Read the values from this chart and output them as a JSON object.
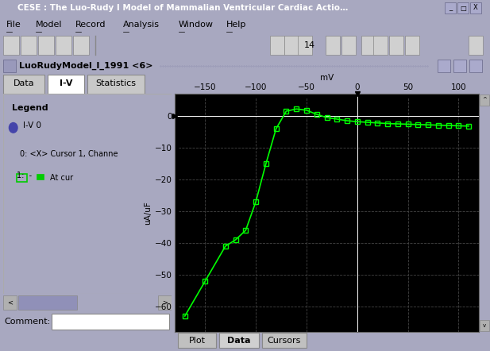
{
  "title": "CESE : The Luo-Rudy I Model of Mammalian Ventricular Cardiac Actio…",
  "menu_items": [
    "File",
    "Model",
    "Record",
    "Analysis",
    "Window",
    "Help"
  ],
  "window_title": "LuoRudyModel_I_1991 <6>",
  "tabs": [
    "Data",
    "I-V",
    "Statistics"
  ],
  "active_tab": "I-V",
  "bottom_tabs": [
    "Plot",
    "Data",
    "Cursors"
  ],
  "active_bottom_tab": "Data",
  "legend_title": "Legend",
  "legend_line1": "I-V 0",
  "legend_line2": "0: <X> Cursor 1, Channe",
  "legend_line3": "1:  -□-  ■  At cur",
  "ylabel": "uA/uF",
  "xlabel": "mV",
  "xlim": [
    -180,
    120
  ],
  "ylim": [
    -68,
    7
  ],
  "xticks": [
    -150,
    -100,
    -50,
    0,
    50,
    100
  ],
  "yticks": [
    0,
    -10,
    -20,
    -30,
    -40,
    -50,
    -60
  ],
  "plot_bg": "#000000",
  "title_bg": "#6e6e9e",
  "menu_bg": "#c8c8c8",
  "toolbar_bg": "#c8c8c8",
  "subwin_bg": "#8888b8",
  "tab_bg": "#c8c8c8",
  "active_tab_bg": "#ffffff",
  "panel_bg": "#ffffff",
  "outer_bg": "#a8a8c0",
  "line_color": "#00ff00",
  "marker_color": "#00ff00",
  "grid_color": "#404040",
  "white_line": "#ffffff",
  "cursor_x": 0,
  "iv_x": [
    -170,
    -150,
    -130,
    -120,
    -110,
    -100,
    -90,
    -80,
    -70,
    -60,
    -50,
    -40,
    -30,
    -20,
    -10,
    0,
    10,
    20,
    30,
    40,
    50,
    60,
    70,
    80,
    90,
    100,
    110
  ],
  "iv_y": [
    -63,
    -52,
    -41,
    -39,
    -36,
    -27,
    -15,
    -4,
    1.5,
    2.2,
    1.8,
    0.5,
    -0.5,
    -1.0,
    -1.5,
    -1.8,
    -2.0,
    -2.2,
    -2.4,
    -2.5,
    -2.6,
    -2.7,
    -2.8,
    -2.9,
    -3.0,
    -3.1,
    -3.2
  ]
}
